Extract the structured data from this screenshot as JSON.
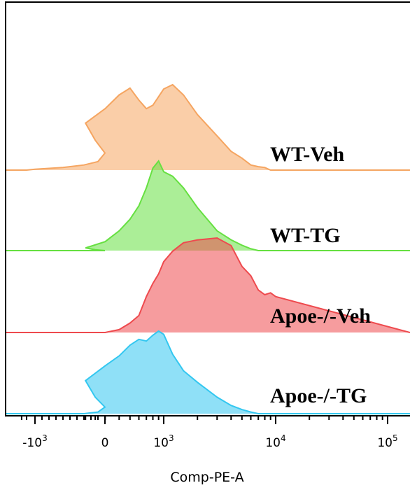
{
  "chart_data": {
    "type": "area",
    "subtype": "staggered-histogram-overlay",
    "title": "",
    "xlabel": "Comp-PE-A",
    "ylabel": "",
    "x_scale": "biexponential",
    "x_ticks": [
      {
        "value": -1000,
        "base": "-10",
        "exp": "3"
      },
      {
        "value": 0,
        "base": "0",
        "exp": ""
      },
      {
        "value": 1000,
        "base": "10",
        "exp": "3"
      },
      {
        "value": 10000,
        "base": "10",
        "exp": "4"
      },
      {
        "value": 100000,
        "base": "10",
        "exp": "5"
      }
    ],
    "x": [
      -2000,
      -1000,
      -600,
      -300,
      -100,
      0,
      100,
      200,
      300,
      400,
      500,
      600,
      700,
      800,
      900,
      1000,
      1200,
      1500,
      2000,
      3000,
      4000,
      5000,
      6000,
      7000,
      8000,
      9000,
      10000
    ],
    "series": [
      {
        "name": "WT-Veh",
        "color": "#f5a561",
        "values": [
          0,
          1,
          3,
          6,
          10,
          20,
          35,
          55,
          72,
          88,
          96,
          82,
          72,
          76,
          86,
          95,
          100,
          88,
          65,
          40,
          22,
          14,
          6,
          4,
          3,
          0,
          0
        ]
      },
      {
        "name": "WT-TG",
        "color": "#66e041",
        "values": [
          0,
          0,
          0,
          0,
          0,
          0,
          1,
          3,
          10,
          22,
          35,
          50,
          70,
          92,
          100,
          88,
          83,
          70,
          48,
          22,
          12,
          6,
          2,
          0,
          0,
          0,
          0
        ]
      },
      {
        "name": "Apoe-/-Veh",
        "color": "#ee4a4e",
        "values": [
          0,
          0,
          0,
          0,
          0,
          0,
          0,
          0,
          0,
          3,
          10,
          18,
          38,
          52,
          62,
          75,
          86,
          95,
          98,
          100,
          92,
          70,
          60,
          45,
          40,
          42,
          38
        ]
      },
      {
        "name": "Apoe-/-TG",
        "color": "#33c7f0",
        "values": [
          0,
          0,
          0,
          0,
          2,
          8,
          20,
          40,
          58,
          70,
          83,
          90,
          88,
          95,
          100,
          96,
          72,
          52,
          38,
          20,
          10,
          5,
          2,
          0,
          0,
          0,
          0
        ]
      }
    ],
    "grid": false,
    "legend": "right, inline labels"
  }
}
